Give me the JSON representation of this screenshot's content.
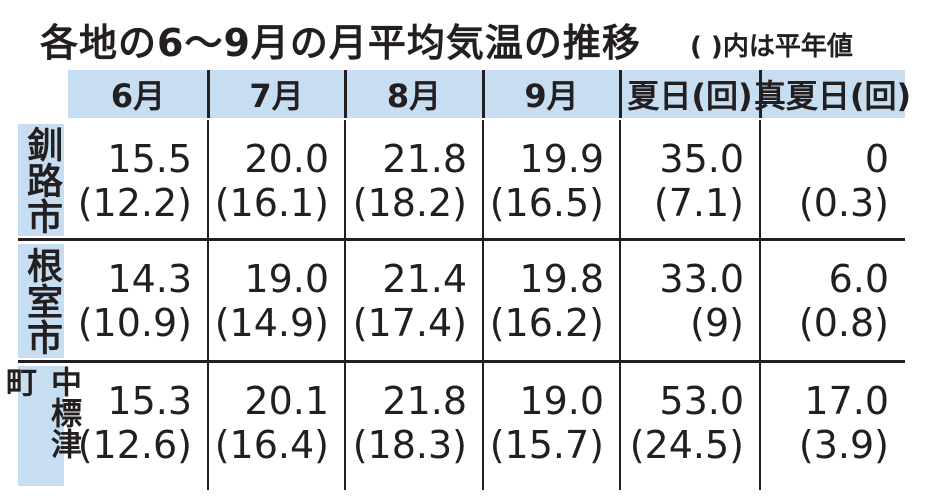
{
  "header": {
    "title": "各地の6～9月の月平均気温の推移",
    "note": "( )内は平年値"
  },
  "table": {
    "columns": [
      "6月",
      "7月",
      "8月",
      "9月",
      "夏日(回)",
      "真夏日(回)"
    ],
    "rows": [
      {
        "label": "釧路市",
        "cells": [
          [
            "15.5",
            "(12.2)"
          ],
          [
            "20.0",
            "(16.1)"
          ],
          [
            "21.8",
            "(18.2)"
          ],
          [
            "19.9",
            "(16.5)"
          ],
          [
            "35.0",
            "(7.1)"
          ],
          [
            "0",
            "(0.3)"
          ]
        ]
      },
      {
        "label": "根室市",
        "cells": [
          [
            "14.3",
            "(10.9)"
          ],
          [
            "19.0",
            "(14.9)"
          ],
          [
            "21.4",
            "(17.4)"
          ],
          [
            "19.8",
            "(16.2)"
          ],
          [
            "33.0",
            "(9)"
          ],
          [
            "6.0",
            "(0.8)"
          ]
        ]
      },
      {
        "label": "中標津町",
        "cells": [
          [
            "15.3",
            "(12.6)"
          ],
          [
            "20.1",
            "(16.4)"
          ],
          [
            "21.8",
            "(18.3)"
          ],
          [
            "19.0",
            "(15.7)"
          ],
          [
            "53.0",
            "(24.5)"
          ],
          [
            "17.0",
            "(3.9)"
          ]
        ]
      }
    ]
  }
}
